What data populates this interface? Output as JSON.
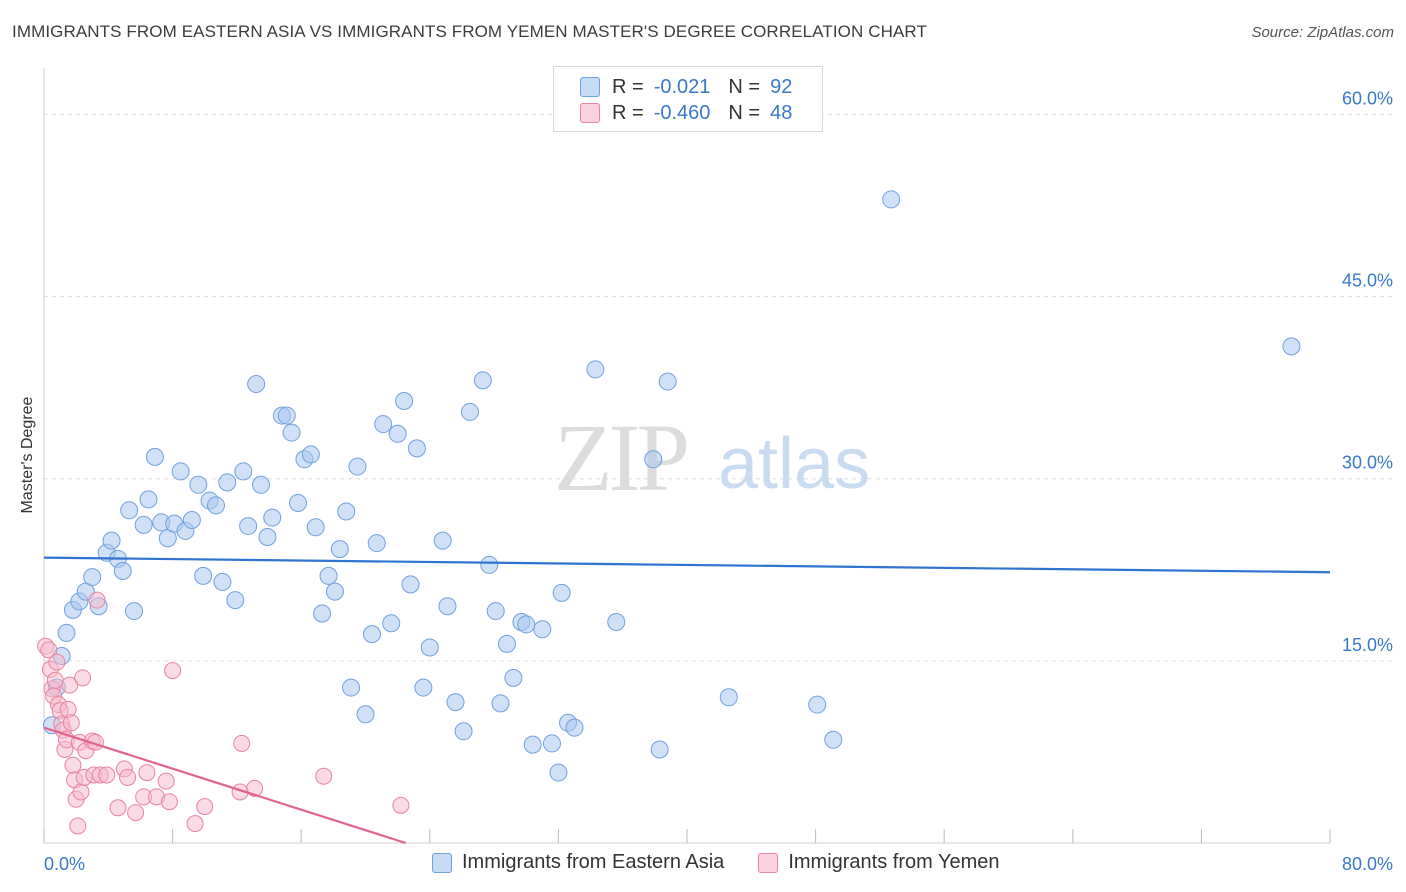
{
  "title": "IMMIGRANTS FROM EASTERN ASIA VS IMMIGRANTS FROM YEMEN MASTER'S DEGREE CORRELATION CHART",
  "source": "Source: ZipAtlas.com",
  "watermark": {
    "zip": "ZIP",
    "atlas": "atlas"
  },
  "legend": {
    "rows": [
      {
        "r_label": "R =",
        "r_value": "-0.021",
        "n_label": "N =",
        "n_value": "92",
        "color": "#a9c8f0",
        "border": "#6fa1de"
      },
      {
        "r_label": "R =",
        "r_value": "-0.460",
        "n_label": "N =",
        "n_value": "48",
        "color": "#f6b8cb",
        "border": "#e8849f"
      }
    ]
  },
  "bottom_legend": [
    "Immigrants from Eastern Asia",
    "Immigrants from Yemen"
  ],
  "colors": {
    "blue_fill": "#a9c8f0",
    "blue_stroke": "#6fa1de",
    "blue_line": "#2f74d0",
    "pink_fill": "#f6b8cb",
    "pink_stroke": "#e8849f",
    "pink_line": "#e0648f",
    "tick_text": "#3a78c9",
    "grid": "#dddddd"
  },
  "chart_data": {
    "type": "scatter",
    "title": "IMMIGRANTS FROM EASTERN ASIA VS IMMIGRANTS FROM YEMEN MASTER'S DEGREE CORRELATION CHART",
    "ylabel": "Master's Degree",
    "xlim": [
      0,
      80
    ],
    "ylim": [
      0,
      63
    ],
    "x_ticks": [
      "0.0%",
      "80.0%"
    ],
    "y_ticks": [
      {
        "value": 15,
        "label": "15.0%"
      },
      {
        "value": 30,
        "label": "30.0%"
      },
      {
        "value": 45,
        "label": "45.0%"
      },
      {
        "value": 60,
        "label": "60.0%"
      }
    ],
    "grid": true,
    "series": [
      {
        "name": "Immigrants from Eastern Asia",
        "trend": {
          "x": [
            0,
            80
          ],
          "y": [
            23.5,
            22.3
          ]
        },
        "points": [
          [
            0.5,
            9.7
          ],
          [
            0.8,
            12.8
          ],
          [
            1.1,
            15.4
          ],
          [
            1.4,
            17.3
          ],
          [
            1.8,
            19.2
          ],
          [
            2.2,
            19.9
          ],
          [
            2.6,
            20.7
          ],
          [
            3.0,
            21.9
          ],
          [
            3.4,
            19.5
          ],
          [
            3.9,
            23.9
          ],
          [
            4.2,
            24.9
          ],
          [
            4.6,
            23.4
          ],
          [
            4.9,
            22.4
          ],
          [
            5.3,
            27.4
          ],
          [
            5.6,
            19.1
          ],
          [
            6.2,
            26.2
          ],
          [
            6.5,
            28.3
          ],
          [
            6.9,
            31.8
          ],
          [
            7.3,
            26.4
          ],
          [
            7.7,
            25.1
          ],
          [
            8.1,
            26.3
          ],
          [
            8.5,
            30.6
          ],
          [
            8.8,
            25.7
          ],
          [
            9.2,
            26.6
          ],
          [
            9.6,
            29.5
          ],
          [
            9.9,
            22.0
          ],
          [
            10.3,
            28.2
          ],
          [
            10.7,
            27.8
          ],
          [
            11.1,
            21.5
          ],
          [
            11.4,
            29.7
          ],
          [
            11.9,
            20.0
          ],
          [
            12.4,
            30.6
          ],
          [
            12.7,
            26.1
          ],
          [
            13.2,
            37.8
          ],
          [
            13.5,
            29.5
          ],
          [
            13.9,
            25.2
          ],
          [
            14.2,
            26.8
          ],
          [
            14.8,
            35.2
          ],
          [
            15.1,
            35.2
          ],
          [
            15.4,
            33.8
          ],
          [
            15.8,
            28.0
          ],
          [
            16.2,
            31.6
          ],
          [
            16.6,
            32.0
          ],
          [
            16.9,
            26.0
          ],
          [
            17.3,
            18.9
          ],
          [
            17.7,
            22.0
          ],
          [
            18.1,
            20.7
          ],
          [
            18.4,
            24.2
          ],
          [
            18.8,
            27.3
          ],
          [
            19.1,
            12.8
          ],
          [
            19.5,
            31.0
          ],
          [
            20.0,
            10.6
          ],
          [
            20.4,
            17.2
          ],
          [
            20.7,
            24.7
          ],
          [
            21.1,
            34.5
          ],
          [
            21.6,
            18.1
          ],
          [
            22.0,
            33.7
          ],
          [
            22.4,
            36.4
          ],
          [
            22.8,
            21.3
          ],
          [
            23.2,
            32.5
          ],
          [
            23.6,
            12.8
          ],
          [
            24.0,
            16.1
          ],
          [
            24.8,
            24.9
          ],
          [
            25.1,
            19.5
          ],
          [
            25.6,
            11.6
          ],
          [
            26.1,
            9.2
          ],
          [
            26.5,
            35.5
          ],
          [
            27.3,
            38.1
          ],
          [
            27.7,
            22.9
          ],
          [
            28.1,
            19.1
          ],
          [
            28.4,
            11.5
          ],
          [
            28.8,
            16.4
          ],
          [
            29.2,
            13.6
          ],
          [
            29.7,
            18.2
          ],
          [
            30.0,
            18.0
          ],
          [
            30.4,
            8.1
          ],
          [
            31.0,
            17.6
          ],
          [
            31.6,
            8.2
          ],
          [
            32.2,
            20.6
          ],
          [
            32.0,
            5.8
          ],
          [
            32.6,
            9.9
          ],
          [
            33.0,
            9.5
          ],
          [
            34.3,
            39.0
          ],
          [
            35.6,
            18.2
          ],
          [
            37.9,
            31.6
          ],
          [
            38.3,
            7.7
          ],
          [
            38.8,
            38.0
          ],
          [
            42.6,
            12.0
          ],
          [
            48.1,
            11.4
          ],
          [
            49.1,
            8.5
          ],
          [
            52.7,
            53.0
          ],
          [
            77.6,
            40.9
          ]
        ]
      },
      {
        "name": "Immigrants from Yemen",
        "trend": {
          "x": [
            0,
            22.5
          ],
          "y": [
            9.5,
            0
          ]
        },
        "points": [
          [
            0.1,
            16.2
          ],
          [
            0.3,
            15.9
          ],
          [
            0.4,
            14.3
          ],
          [
            0.5,
            12.7
          ],
          [
            0.6,
            12.1
          ],
          [
            0.7,
            13.4
          ],
          [
            0.8,
            14.9
          ],
          [
            0.9,
            11.4
          ],
          [
            1.0,
            10.9
          ],
          [
            1.1,
            9.8
          ],
          [
            1.2,
            9.3
          ],
          [
            1.3,
            7.7
          ],
          [
            1.4,
            8.5
          ],
          [
            1.5,
            11.0
          ],
          [
            1.6,
            13.0
          ],
          [
            1.7,
            9.9
          ],
          [
            1.8,
            6.4
          ],
          [
            1.9,
            5.2
          ],
          [
            2.0,
            3.6
          ],
          [
            2.1,
            1.4
          ],
          [
            2.2,
            8.3
          ],
          [
            2.3,
            4.2
          ],
          [
            2.4,
            13.6
          ],
          [
            2.5,
            5.4
          ],
          [
            2.6,
            7.6
          ],
          [
            3.0,
            8.4
          ],
          [
            3.1,
            5.6
          ],
          [
            3.2,
            8.3
          ],
          [
            3.3,
            20.0
          ],
          [
            3.5,
            5.6
          ],
          [
            3.9,
            5.6
          ],
          [
            4.6,
            2.9
          ],
          [
            5.0,
            6.1
          ],
          [
            5.2,
            5.4
          ],
          [
            5.7,
            2.5
          ],
          [
            6.2,
            3.8
          ],
          [
            6.4,
            5.8
          ],
          [
            7.0,
            3.8
          ],
          [
            7.6,
            5.1
          ],
          [
            7.8,
            3.4
          ],
          [
            8.0,
            14.2
          ],
          [
            9.4,
            1.6
          ],
          [
            10.0,
            3.0
          ],
          [
            12.2,
            4.2
          ],
          [
            12.3,
            8.2
          ],
          [
            13.1,
            4.5
          ],
          [
            17.4,
            5.5
          ],
          [
            22.2,
            3.1
          ]
        ]
      }
    ]
  }
}
